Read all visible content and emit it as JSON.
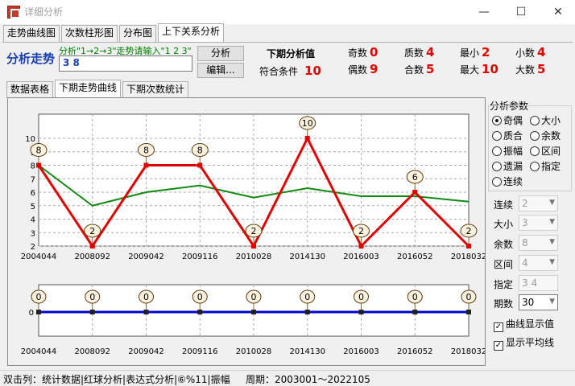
{
  "window": {
    "title": "详细分析",
    "minimize": "—",
    "maximize": "☐",
    "close": "✕"
  },
  "main_tabs": [
    {
      "label": "走势曲线图"
    },
    {
      "label": "次数柱形图"
    },
    {
      "label": "分布图"
    },
    {
      "label": "上下关系分析"
    }
  ],
  "top": {
    "title": "分析走势",
    "hint": "分析\"1→2→3\"走势请输入\"1 2 3\"",
    "input_value": "3 8",
    "analyze_btn": "分析",
    "edit_btn": "编辑...",
    "next_value_label": "下期分析值",
    "match_label": "符合条件",
    "match_value": "10",
    "stats": [
      {
        "label": "奇数",
        "value": "0"
      },
      {
        "label": "质数",
        "value": "4"
      },
      {
        "label": "最小",
        "value": "2"
      },
      {
        "label": "小数",
        "value": "4"
      },
      {
        "label": "偶数",
        "value": "9"
      },
      {
        "label": "合数",
        "value": "5"
      },
      {
        "label": "最大",
        "value": "10"
      },
      {
        "label": "大数",
        "value": "5"
      }
    ]
  },
  "sub_tabs": [
    {
      "label": "数据表格"
    },
    {
      "label": "下期走势曲线"
    },
    {
      "label": "下期次数统计"
    }
  ],
  "side": {
    "title": "分析参数",
    "radios": [
      {
        "label": "奇偶",
        "on": true
      },
      {
        "label": "大小",
        "on": false
      },
      {
        "label": "质合",
        "on": false
      },
      {
        "label": "余数",
        "on": false
      },
      {
        "label": "振幅",
        "on": false
      },
      {
        "label": "区间",
        "on": false
      },
      {
        "label": "遗漏",
        "on": false
      },
      {
        "label": "指定",
        "on": false
      },
      {
        "label": "连续",
        "on": false
      }
    ],
    "selects": [
      {
        "label": "连续",
        "value": "2"
      },
      {
        "label": "大小",
        "value": "3"
      },
      {
        "label": "余数",
        "value": "8"
      },
      {
        "label": "区间",
        "value": "4"
      },
      {
        "label": "指定",
        "value": "3 4"
      },
      {
        "label": "期数",
        "value": "30"
      }
    ],
    "checks": [
      {
        "label": "曲线显示值",
        "checked": true
      },
      {
        "label": "显示平均线",
        "checked": true
      }
    ]
  },
  "status": {
    "left": "双击列：统计数据|红球分析|表达式分析|⑥%11|振幅",
    "period": "周期：2003001～2022105"
  },
  "colors": {
    "series": "#e00000",
    "avg": "#108a10",
    "lower": "#0000cc",
    "accent": "#1a3fb5"
  },
  "chart_data": [
    {
      "type": "line",
      "categories": [
        "2004044",
        "2008092",
        "2009042",
        "2009116",
        "2010028",
        "2014130",
        "2016003",
        "2016052",
        "2018032"
      ],
      "series": [
        {
          "values": [
            8,
            2,
            8,
            8,
            2,
            10,
            2,
            6,
            2
          ]
        },
        {
          "values": [
            8,
            5,
            6,
            6.5,
            5.6,
            6.3,
            5.7,
            5.7,
            5.3
          ]
        }
      ],
      "ylim": [
        2,
        10
      ],
      "yticks": [
        2,
        3,
        4,
        5,
        6,
        7,
        8,
        9,
        10
      ],
      "grid": true
    },
    {
      "type": "line",
      "categories": [
        "2004044",
        "2008092",
        "2009042",
        "2009116",
        "2010028",
        "2014130",
        "2016003",
        "2016052",
        "2018032"
      ],
      "series": [
        {
          "values": [
            0,
            0,
            0,
            0,
            0,
            0,
            0,
            0,
            0
          ]
        }
      ],
      "yticks": [
        0
      ]
    }
  ]
}
